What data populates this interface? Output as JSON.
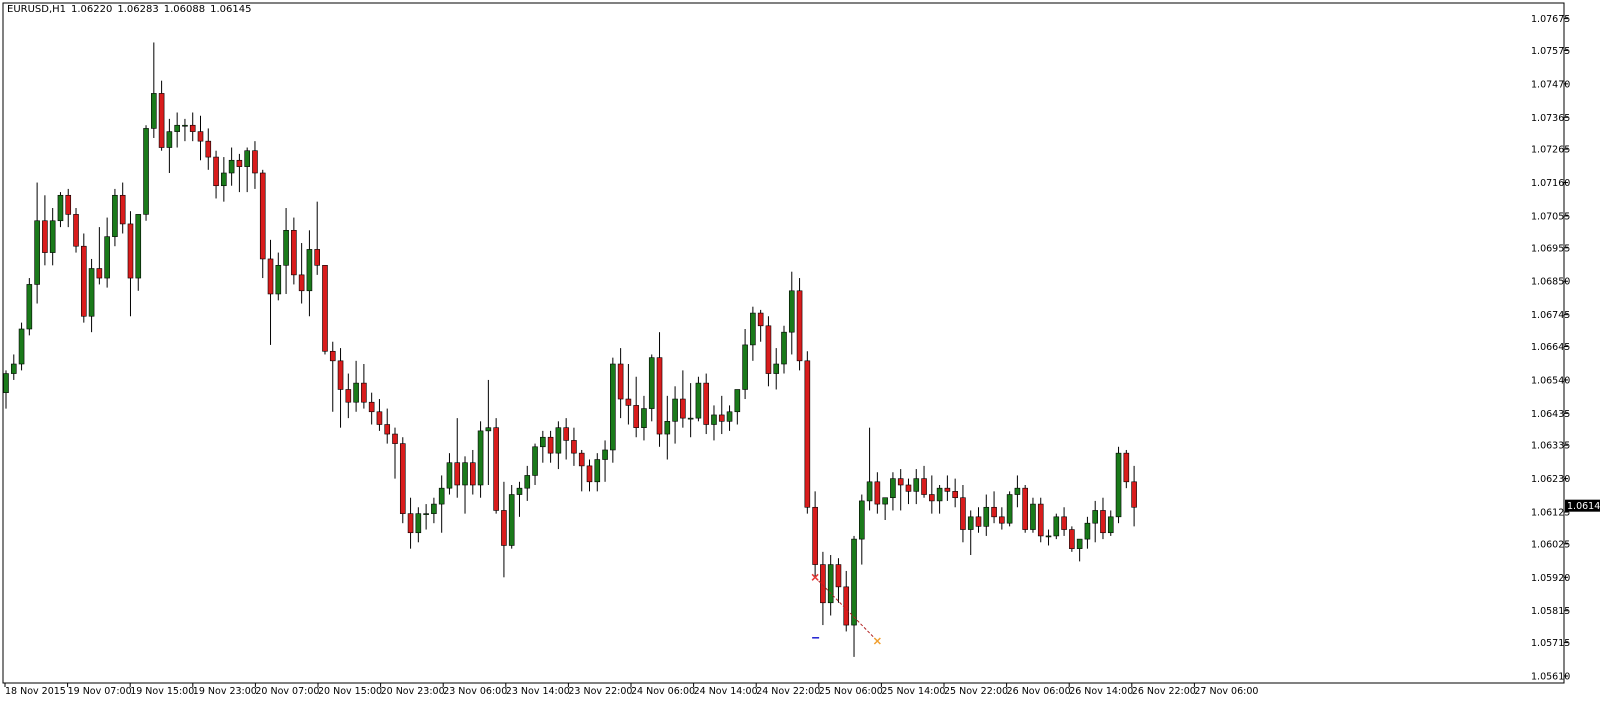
{
  "header": {
    "symbol": "EURUSD,H1",
    "open": "1.06220",
    "high": "1.06283",
    "low": "1.06088",
    "close": "1.06145"
  },
  "current_price_label": "1.06145",
  "colors": {
    "background": "#ffffff",
    "bull": "#1a7a1a",
    "bear": "#d91c1c",
    "wick": "#000000",
    "frame": "#000000",
    "trade_sell": "#e53935",
    "trade_buy": "#f0a030",
    "trade_line": "#b22222",
    "marker_blue": "#1f1fd0"
  },
  "chart_data": {
    "type": "candlestick",
    "title": "EURUSD,H1",
    "y_ticks": [
      "1.07675",
      "1.07575",
      "1.07470",
      "1.07365",
      "1.07265",
      "1.07160",
      "1.07055",
      "1.06955",
      "1.06850",
      "1.06745",
      "1.06645",
      "1.06540",
      "1.06435",
      "1.06335",
      "1.06230",
      "1.06125",
      "1.06025",
      "1.05920",
      "1.05815",
      "1.05715",
      "1.05610"
    ],
    "ylim": [
      1.0561,
      1.0768
    ],
    "x_labels": [
      "18 Nov 2015",
      "19 Nov 07:00",
      "19 Nov 15:00",
      "19 Nov 23:00",
      "20 Nov 07:00",
      "20 Nov 15:00",
      "20 Nov 23:00",
      "23 Nov 06:00",
      "23 Nov 14:00",
      "23 Nov 22:00",
      "24 Nov 06:00",
      "24 Nov 14:00",
      "24 Nov 22:00",
      "25 Nov 06:00",
      "25 Nov 14:00",
      "25 Nov 22:00",
      "26 Nov 06:00",
      "26 Nov 14:00",
      "26 Nov 22:00",
      "27 Nov 06:00"
    ],
    "ohlc": [
      [
        1.065,
        1.0657,
        1.0645,
        1.0656
      ],
      [
        1.0656,
        1.0662,
        1.0654,
        1.0659
      ],
      [
        1.0659,
        1.0672,
        1.0657,
        1.067
      ],
      [
        1.067,
        1.0686,
        1.0668,
        1.0684
      ],
      [
        1.0684,
        1.0716,
        1.0678,
        1.0704
      ],
      [
        1.0704,
        1.0712,
        1.069,
        1.0694
      ],
      [
        1.0694,
        1.0708,
        1.069,
        1.0704
      ],
      [
        1.0704,
        1.0713,
        1.0702,
        1.0712
      ],
      [
        1.0712,
        1.0714,
        1.0702,
        1.0706
      ],
      [
        1.0706,
        1.0708,
        1.0694,
        1.0696
      ],
      [
        1.0696,
        1.07,
        1.0672,
        1.0674
      ],
      [
        1.0674,
        1.0692,
        1.0669,
        1.0689
      ],
      [
        1.0689,
        1.0702,
        1.0684,
        1.0686
      ],
      [
        1.0686,
        1.0705,
        1.0683,
        1.0699
      ],
      [
        1.0699,
        1.0714,
        1.0696,
        1.0712
      ],
      [
        1.0712,
        1.0716,
        1.07,
        1.0703
      ],
      [
        1.0703,
        1.0707,
        1.0674,
        1.0686
      ],
      [
        1.0686,
        1.0706,
        1.0682,
        1.0706
      ],
      [
        1.0706,
        1.0734,
        1.0704,
        1.0733
      ],
      [
        1.0733,
        1.076,
        1.073,
        1.0744
      ],
      [
        1.0744,
        1.0748,
        1.0726,
        1.0727
      ],
      [
        1.0727,
        1.0736,
        1.0719,
        1.0732
      ],
      [
        1.0732,
        1.0738,
        1.0727,
        1.0734
      ],
      [
        1.0734,
        1.0736,
        1.0729,
        1.0734
      ],
      [
        1.0734,
        1.0738,
        1.0729,
        1.0732
      ],
      [
        1.0732,
        1.0737,
        1.0723,
        1.0729
      ],
      [
        1.0729,
        1.0733,
        1.072,
        1.0724
      ],
      [
        1.0724,
        1.0726,
        1.0711,
        1.0715
      ],
      [
        1.0715,
        1.0724,
        1.071,
        1.0719
      ],
      [
        1.0719,
        1.0727,
        1.0715,
        1.0723
      ],
      [
        1.0723,
        1.0725,
        1.0713,
        1.0721
      ],
      [
        1.0721,
        1.0727,
        1.0713,
        1.0726
      ],
      [
        1.0726,
        1.0729,
        1.0714,
        1.0719
      ],
      [
        1.0719,
        1.072,
        1.0686,
        1.0692
      ],
      [
        1.0692,
        1.0698,
        1.0665,
        1.0681
      ],
      [
        1.0681,
        1.0694,
        1.0679,
        1.069
      ],
      [
        1.069,
        1.0708,
        1.0681,
        1.0701
      ],
      [
        1.0701,
        1.0705,
        1.0684,
        1.0687
      ],
      [
        1.0687,
        1.0697,
        1.0678,
        1.0682
      ],
      [
        1.0682,
        1.0701,
        1.0674,
        1.0695
      ],
      [
        1.0695,
        1.071,
        1.0687,
        1.069
      ],
      [
        1.069,
        1.069,
        1.0662,
        1.0663
      ],
      [
        1.0663,
        1.0666,
        1.0644,
        1.066
      ],
      [
        1.066,
        1.0664,
        1.0639,
        1.0651
      ],
      [
        1.0651,
        1.0656,
        1.0642,
        1.0647
      ],
      [
        1.0647,
        1.066,
        1.0644,
        1.0653
      ],
      [
        1.0653,
        1.0659,
        1.0645,
        1.0647
      ],
      [
        1.0647,
        1.065,
        1.064,
        1.0644
      ],
      [
        1.0644,
        1.0648,
        1.0638,
        1.064
      ],
      [
        1.064,
        1.0645,
        1.0634,
        1.0637
      ],
      [
        1.0637,
        1.0639,
        1.0623,
        1.0634
      ],
      [
        1.0634,
        1.0636,
        1.0609,
        1.0612
      ],
      [
        1.0612,
        1.0617,
        1.0601,
        1.0606
      ],
      [
        1.0606,
        1.0614,
        1.0603,
        1.0612
      ],
      [
        1.0612,
        1.0615,
        1.0607,
        1.0612
      ],
      [
        1.0612,
        1.0617,
        1.0609,
        1.0615
      ],
      [
        1.0615,
        1.0624,
        1.0606,
        1.062
      ],
      [
        1.062,
        1.0631,
        1.0618,
        1.0628
      ],
      [
        1.0628,
        1.0642,
        1.0617,
        1.0621
      ],
      [
        1.0621,
        1.063,
        1.0612,
        1.0628
      ],
      [
        1.0628,
        1.0632,
        1.0618,
        1.0621
      ],
      [
        1.0621,
        1.0641,
        1.0617,
        1.0638
      ],
      [
        1.0638,
        1.0654,
        1.0621,
        1.0639
      ],
      [
        1.0639,
        1.0642,
        1.0612,
        1.0613
      ],
      [
        1.0613,
        1.0622,
        1.0592,
        1.0602
      ],
      [
        1.0602,
        1.0621,
        1.0601,
        1.0618
      ],
      [
        1.0618,
        1.0622,
        1.0611,
        1.062
      ],
      [
        1.062,
        1.0627,
        1.0616,
        1.0624
      ],
      [
        1.0624,
        1.0634,
        1.0621,
        1.0633
      ],
      [
        1.0633,
        1.0638,
        1.0628,
        1.0636
      ],
      [
        1.0636,
        1.0638,
        1.0628,
        1.0631
      ],
      [
        1.0631,
        1.0641,
        1.0626,
        1.0639
      ],
      [
        1.0639,
        1.0642,
        1.0629,
        1.0635
      ],
      [
        1.0635,
        1.0639,
        1.0627,
        1.0631
      ],
      [
        1.0631,
        1.0632,
        1.0619,
        1.0627
      ],
      [
        1.0627,
        1.0629,
        1.0619,
        1.0622
      ],
      [
        1.0622,
        1.0631,
        1.0619,
        1.0629
      ],
      [
        1.0629,
        1.0635,
        1.0622,
        1.0632
      ],
      [
        1.0632,
        1.0661,
        1.0628,
        1.0659
      ],
      [
        1.0659,
        1.0664,
        1.0642,
        1.0648
      ],
      [
        1.0648,
        1.0659,
        1.064,
        1.0646
      ],
      [
        1.0646,
        1.0655,
        1.0636,
        1.0639
      ],
      [
        1.0639,
        1.0649,
        1.0635,
        1.0645
      ],
      [
        1.0645,
        1.0662,
        1.0641,
        1.0661
      ],
      [
        1.0661,
        1.0669,
        1.0633,
        1.0637
      ],
      [
        1.0637,
        1.0649,
        1.0629,
        1.0641
      ],
      [
        1.0641,
        1.0652,
        1.0634,
        1.0648
      ],
      [
        1.0648,
        1.0657,
        1.0639,
        1.0642
      ],
      [
        1.0642,
        1.0653,
        1.0636,
        1.0642
      ],
      [
        1.0642,
        1.0655,
        1.0641,
        1.0653
      ],
      [
        1.0653,
        1.0656,
        1.0637,
        1.064
      ],
      [
        1.064,
        1.0646,
        1.0635,
        1.0643
      ],
      [
        1.0643,
        1.0649,
        1.0637,
        1.0641
      ],
      [
        1.0641,
        1.0646,
        1.0638,
        1.0644
      ],
      [
        1.0644,
        1.0651,
        1.064,
        1.0651
      ],
      [
        1.0651,
        1.067,
        1.0648,
        1.0665
      ],
      [
        1.0665,
        1.0677,
        1.066,
        1.0675
      ],
      [
        1.0675,
        1.0676,
        1.0666,
        1.0671
      ],
      [
        1.0671,
        1.0674,
        1.0652,
        1.0656
      ],
      [
        1.0656,
        1.0664,
        1.0651,
        1.0659
      ],
      [
        1.0659,
        1.0671,
        1.0656,
        1.0669
      ],
      [
        1.0669,
        1.0688,
        1.0662,
        1.0682
      ],
      [
        1.0682,
        1.0686,
        1.0657,
        1.066
      ],
      [
        1.066,
        1.0663,
        1.0612,
        1.0614
      ],
      [
        1.0614,
        1.0619,
        1.0592,
        1.0596
      ],
      [
        1.0596,
        1.06,
        1.0577,
        1.0584
      ],
      [
        1.0584,
        1.0599,
        1.058,
        1.0596
      ],
      [
        1.0596,
        1.0598,
        1.0584,
        1.0589
      ],
      [
        1.0589,
        1.0594,
        1.0575,
        1.0577
      ],
      [
        1.0577,
        1.0605,
        1.0567,
        1.0604
      ],
      [
        1.0604,
        1.0618,
        1.0596,
        1.0616
      ],
      [
        1.0616,
        1.0639,
        1.0613,
        1.0622
      ],
      [
        1.0622,
        1.0625,
        1.0612,
        1.0615
      ],
      [
        1.0615,
        1.0617,
        1.061,
        1.0617
      ],
      [
        1.0617,
        1.0625,
        1.0613,
        1.0623
      ],
      [
        1.0623,
        1.0626,
        1.0613,
        1.0621
      ],
      [
        1.0621,
        1.0623,
        1.0615,
        1.0619
      ],
      [
        1.0619,
        1.0626,
        1.0615,
        1.0623
      ],
      [
        1.0623,
        1.0627,
        1.0617,
        1.0618
      ],
      [
        1.0618,
        1.0624,
        1.0612,
        1.0616
      ],
      [
        1.0616,
        1.0621,
        1.0612,
        1.062
      ],
      [
        1.062,
        1.0624,
        1.0616,
        1.0619
      ],
      [
        1.0619,
        1.0623,
        1.0614,
        1.0617
      ],
      [
        1.0617,
        1.0621,
        1.0603,
        1.0607
      ],
      [
        1.0607,
        1.0613,
        1.0599,
        1.0611
      ],
      [
        1.0611,
        1.0614,
        1.0606,
        1.0608
      ],
      [
        1.0608,
        1.0618,
        1.0605,
        1.0614
      ],
      [
        1.0614,
        1.0619,
        1.0609,
        1.0611
      ],
      [
        1.0611,
        1.0614,
        1.0607,
        1.0609
      ],
      [
        1.0609,
        1.0619,
        1.0608,
        1.0618
      ],
      [
        1.0618,
        1.0624,
        1.0614,
        1.062
      ],
      [
        1.062,
        1.0621,
        1.0606,
        1.0607
      ],
      [
        1.0607,
        1.0617,
        1.0606,
        1.0615
      ],
      [
        1.0615,
        1.0617,
        1.0603,
        1.0605
      ],
      [
        1.0605,
        1.0607,
        1.0602,
        1.0605
      ],
      [
        1.0605,
        1.0612,
        1.0604,
        1.0611
      ],
      [
        1.0611,
        1.0614,
        1.0605,
        1.0607
      ],
      [
        1.0607,
        1.0608,
        1.06,
        1.0601
      ],
      [
        1.0601,
        1.0604,
        1.0597,
        1.0604
      ],
      [
        1.0604,
        1.0611,
        1.0601,
        1.0609
      ],
      [
        1.0609,
        1.0616,
        1.0603,
        1.0613
      ],
      [
        1.0613,
        1.0617,
        1.0604,
        1.0606
      ],
      [
        1.0606,
        1.0613,
        1.0605,
        1.0611
      ],
      [
        1.0611,
        1.0633,
        1.0609,
        1.0631
      ],
      [
        1.0631,
        1.0632,
        1.062,
        1.0622
      ],
      [
        1.0622,
        1.0627,
        1.0608,
        1.0614
      ]
    ],
    "trade": {
      "entry_index": 104,
      "entry_price": 1.0592,
      "exit_index": 112,
      "exit_price": 1.0572,
      "marker_index": 104,
      "marker_price": 1.0573
    }
  }
}
